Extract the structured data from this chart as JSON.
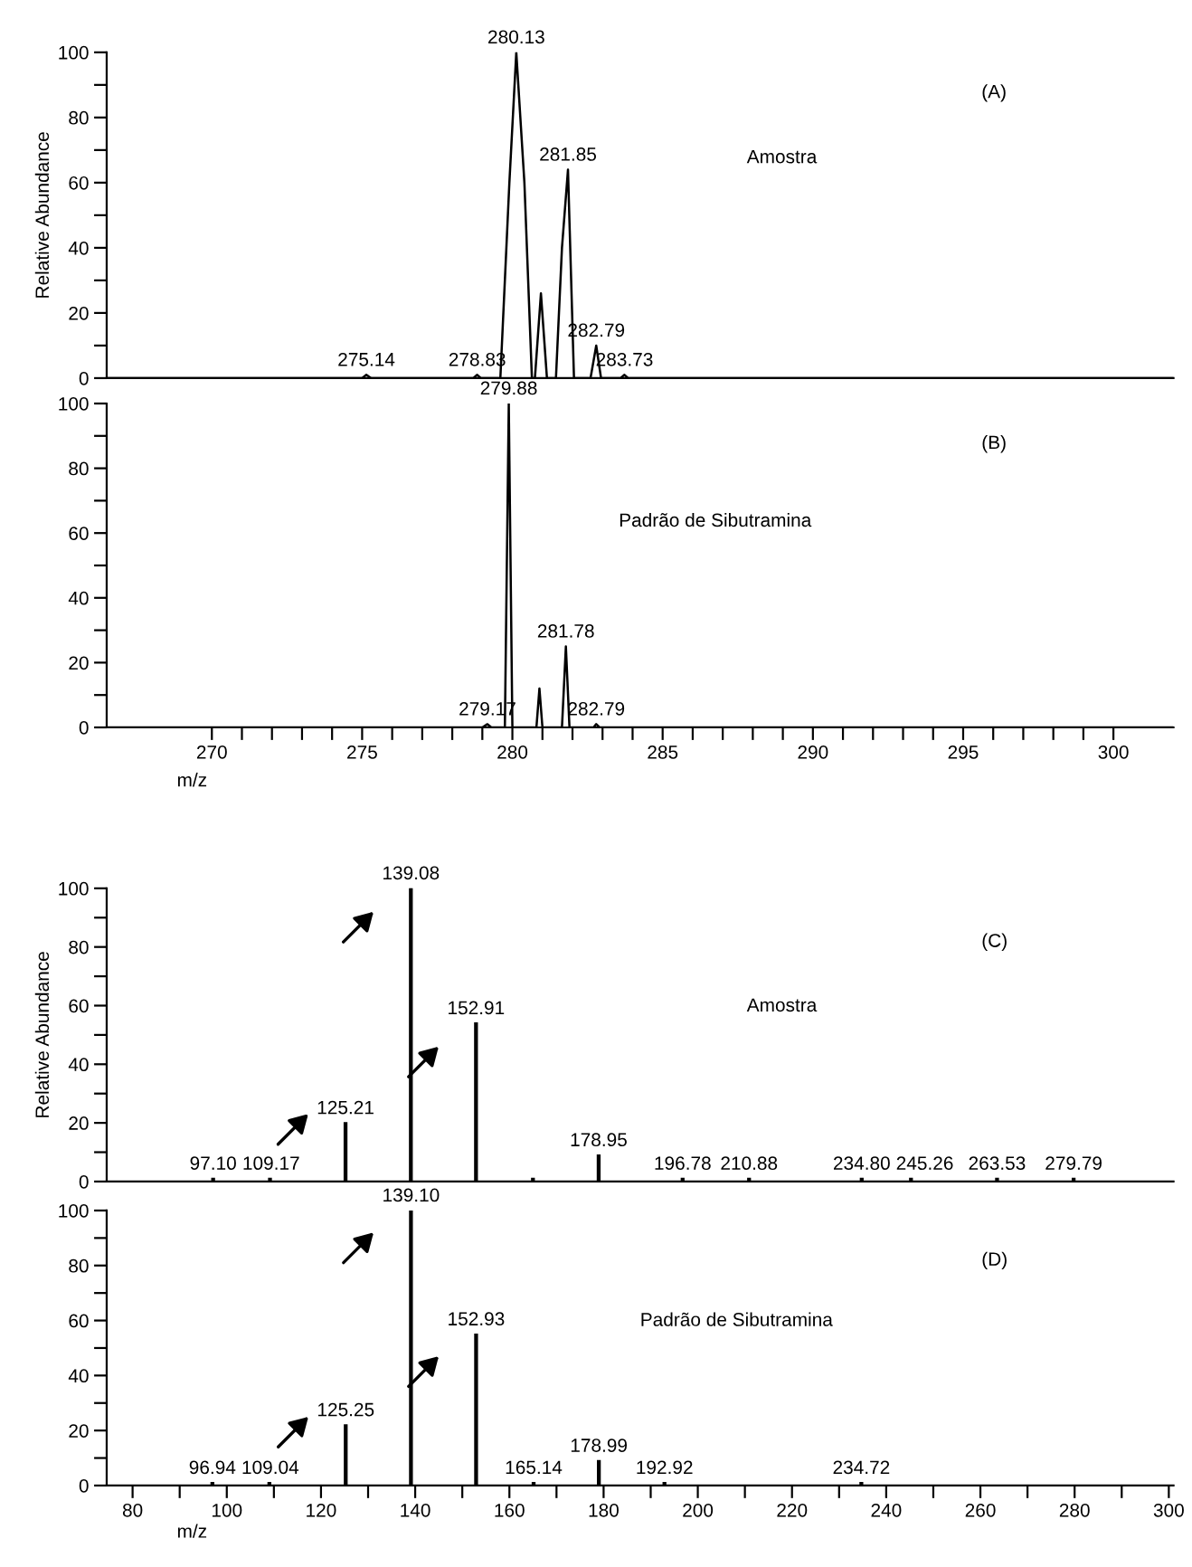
{
  "chart_data": [
    {
      "type": "line",
      "ylabel": "Relative Abundance",
      "xlim": [
        266.5,
        302
      ],
      "ylim": [
        0,
        100
      ],
      "yticks": [
        0,
        {
          "value": 10,
          "label": null
        },
        20,
        {
          "value": 30,
          "label": null
        },
        40,
        {
          "value": 50,
          "label": null
        },
        60,
        {
          "value": 70,
          "label": null
        },
        80,
        {
          "value": 90,
          "label": null
        },
        100
      ],
      "tick_labels": "y",
      "series": [
        {
          "color": "#000000",
          "x": [
            266.5,
            275.0,
            275.14,
            275.3,
            278.7,
            278.83,
            278.95,
            279.6,
            279.9,
            280.13,
            280.4,
            280.65,
            280.75,
            280.95,
            281.15,
            281.45,
            281.65,
            281.85,
            282.05,
            282.6,
            282.79,
            282.95,
            283.6,
            283.73,
            283.85,
            302
          ],
          "values": [
            0,
            0,
            1,
            0,
            0,
            1,
            0,
            0,
            60,
            100,
            60,
            0,
            0,
            26,
            0,
            0,
            40,
            64,
            0,
            0,
            10,
            0,
            0,
            1,
            0,
            0
          ]
        }
      ],
      "annotations": [
        "(A)",
        "Amostra",
        {
          "text": "280.13",
          "x": 280.13,
          "y": 100
        },
        {
          "text": "281.85",
          "x": 281.85,
          "y": 64
        },
        {
          "text": "282.79",
          "x": 282.79,
          "y": 10
        },
        {
          "text": "283.73",
          "x": 283.73,
          "y": 1
        },
        {
          "text": "275.14",
          "x": 275.14,
          "y": 1
        },
        {
          "text": "278.83",
          "x": 278.83,
          "y": 1
        }
      ]
    },
    {
      "type": "line",
      "xlabel": "m/z",
      "xlim": [
        266.5,
        302
      ],
      "ylim": [
        0,
        100
      ],
      "xticks": [
        270,
        {
          "value": 271,
          "label": null
        },
        {
          "value": 272,
          "label": null
        },
        {
          "value": 273,
          "label": null
        },
        {
          "value": 274,
          "label": null
        },
        275,
        {
          "value": 276,
          "label": null
        },
        {
          "value": 277,
          "label": null
        },
        {
          "value": 278,
          "label": null
        },
        {
          "value": 279,
          "label": null
        },
        280,
        {
          "value": 281,
          "label": null
        },
        {
          "value": 282,
          "label": null
        },
        {
          "value": 283,
          "label": null
        },
        {
          "value": 284,
          "label": null
        },
        285,
        {
          "value": 286,
          "label": null
        },
        {
          "value": 287,
          "label": null
        },
        {
          "value": 288,
          "label": null
        },
        {
          "value": 289,
          "label": null
        },
        290,
        {
          "value": 291,
          "label": null
        },
        {
          "value": 292,
          "label": null
        },
        {
          "value": 293,
          "label": null
        },
        {
          "value": 294,
          "label": null
        },
        295,
        {
          "value": 296,
          "label": null
        },
        {
          "value": 297,
          "label": null
        },
        {
          "value": 298,
          "label": null
        },
        {
          "value": 299,
          "label": null
        },
        300
      ],
      "yticks": [
        0,
        {
          "value": 10,
          "label": null
        },
        20,
        {
          "value": 30,
          "label": null
        },
        40,
        {
          "value": 50,
          "label": null
        },
        60,
        {
          "value": 70,
          "label": null
        },
        80,
        {
          "value": 90,
          "label": null
        },
        100
      ],
      "series": [
        {
          "color": "#000000",
          "x": [
            266.5,
            279.0,
            279.17,
            279.3,
            279.75,
            279.88,
            280.0,
            280.8,
            280.9,
            281.0,
            281.65,
            281.78,
            281.9,
            282.7,
            282.79,
            282.9,
            302
          ],
          "values": [
            0,
            0,
            1,
            0,
            0,
            100,
            0,
            0,
            12,
            0,
            0,
            25,
            0,
            0,
            1,
            0,
            0
          ]
        }
      ],
      "annotations": [
        "(B)",
        "Padrão de Sibutramina",
        {
          "text": "279.88",
          "x": 279.88,
          "y": 100
        },
        {
          "text": "281.78",
          "x": 281.78,
          "y": 25
        },
        {
          "text": "282.79",
          "x": 282.79,
          "y": 1
        },
        {
          "text": "279.17",
          "x": 279.17,
          "y": 1
        }
      ]
    },
    {
      "type": "bar",
      "ylabel": "Relative Abundance",
      "xlim": [
        74.5,
        301
      ],
      "ylim": [
        0,
        100
      ],
      "yticks": [
        0,
        {
          "value": 10,
          "label": null
        },
        20,
        {
          "value": 30,
          "label": null
        },
        40,
        {
          "value": 50,
          "label": null
        },
        60,
        {
          "value": 70,
          "label": null
        },
        80,
        {
          "value": 90,
          "label": null
        },
        100
      ],
      "tick_labels": "y",
      "x": [
        97.1,
        109.17,
        125.21,
        139.08,
        152.91,
        165.0,
        178.95,
        196.78,
        210.88,
        234.8,
        245.26,
        263.53,
        279.79
      ],
      "values": [
        1,
        1,
        20,
        100,
        54,
        1,
        9,
        1,
        1,
        1,
        1,
        1,
        1
      ],
      "color": "#000000",
      "annotations": [
        "(C)",
        "Amostra",
        {
          "text": "97.10",
          "x": 97.1,
          "y": 1
        },
        {
          "text": "109.17",
          "x": 109.17,
          "y": 1
        },
        {
          "text": "125.21",
          "x": 125.21,
          "y": 20
        },
        {
          "text": "139.08",
          "x": 139.08,
          "y": 100
        },
        {
          "text": "152.91",
          "x": 152.91,
          "y": 54
        },
        {
          "text": "178.95",
          "x": 178.95,
          "y": 9
        },
        {
          "text": "196.78",
          "x": 196.78,
          "y": 1
        },
        {
          "text": "210.88",
          "x": 210.88,
          "y": 1
        },
        {
          "text": "234.80",
          "x": 234.8,
          "y": 1
        },
        {
          "text": "245.26",
          "x": 245.26,
          "y": 1
        },
        {
          "text": "263.53",
          "x": 263.53,
          "y": 1
        },
        {
          "text": "279.79",
          "x": 279.79,
          "y": 1
        }
      ]
    },
    {
      "type": "bar",
      "xlabel": "m/z",
      "xlim": [
        74.5,
        301
      ],
      "ylim": [
        0,
        100
      ],
      "xticks": [
        80,
        {
          "value": 90,
          "label": null
        },
        100,
        {
          "value": 110,
          "label": null
        },
        120,
        {
          "value": 130,
          "label": null
        },
        140,
        {
          "value": 150,
          "label": null
        },
        160,
        {
          "value": 170,
          "label": null
        },
        180,
        {
          "value": 190,
          "label": null
        },
        200,
        {
          "value": 210,
          "label": null
        },
        220,
        {
          "value": 230,
          "label": null
        },
        240,
        {
          "value": 250,
          "label": null
        },
        260,
        {
          "value": 270,
          "label": null
        },
        280,
        {
          "value": 290,
          "label": null
        },
        300
      ],
      "yticks": [
        0,
        {
          "value": 10,
          "label": null
        },
        20,
        {
          "value": 30,
          "label": null
        },
        40,
        {
          "value": 50,
          "label": null
        },
        60,
        {
          "value": 70,
          "label": null
        },
        80,
        {
          "value": 90,
          "label": null
        },
        100
      ],
      "x": [
        96.94,
        109.04,
        125.25,
        139.1,
        152.93,
        165.14,
        178.99,
        192.92,
        234.72
      ],
      "values": [
        1,
        1,
        22,
        100,
        55,
        1,
        9,
        1,
        1
      ],
      "color": "#000000",
      "annotations": [
        "(D)",
        "Padrão de Sibutramina",
        {
          "text": "96.94",
          "x": 96.94,
          "y": 1
        },
        {
          "text": "109.04",
          "x": 109.04,
          "y": 1
        },
        {
          "text": "125.25",
          "x": 125.25,
          "y": 22
        },
        {
          "text": "139.10",
          "x": 139.1,
          "y": 100
        },
        {
          "text": "152.93",
          "x": 152.93,
          "y": 55
        },
        {
          "text": "165.14",
          "x": 165.14,
          "y": 1
        },
        {
          "text": "178.99",
          "x": 178.99,
          "y": 9
        },
        {
          "text": "192.92",
          "x": 192.92,
          "y": 1
        },
        {
          "text": "234.72",
          "x": 234.72,
          "y": 1
        }
      ]
    }
  ]
}
